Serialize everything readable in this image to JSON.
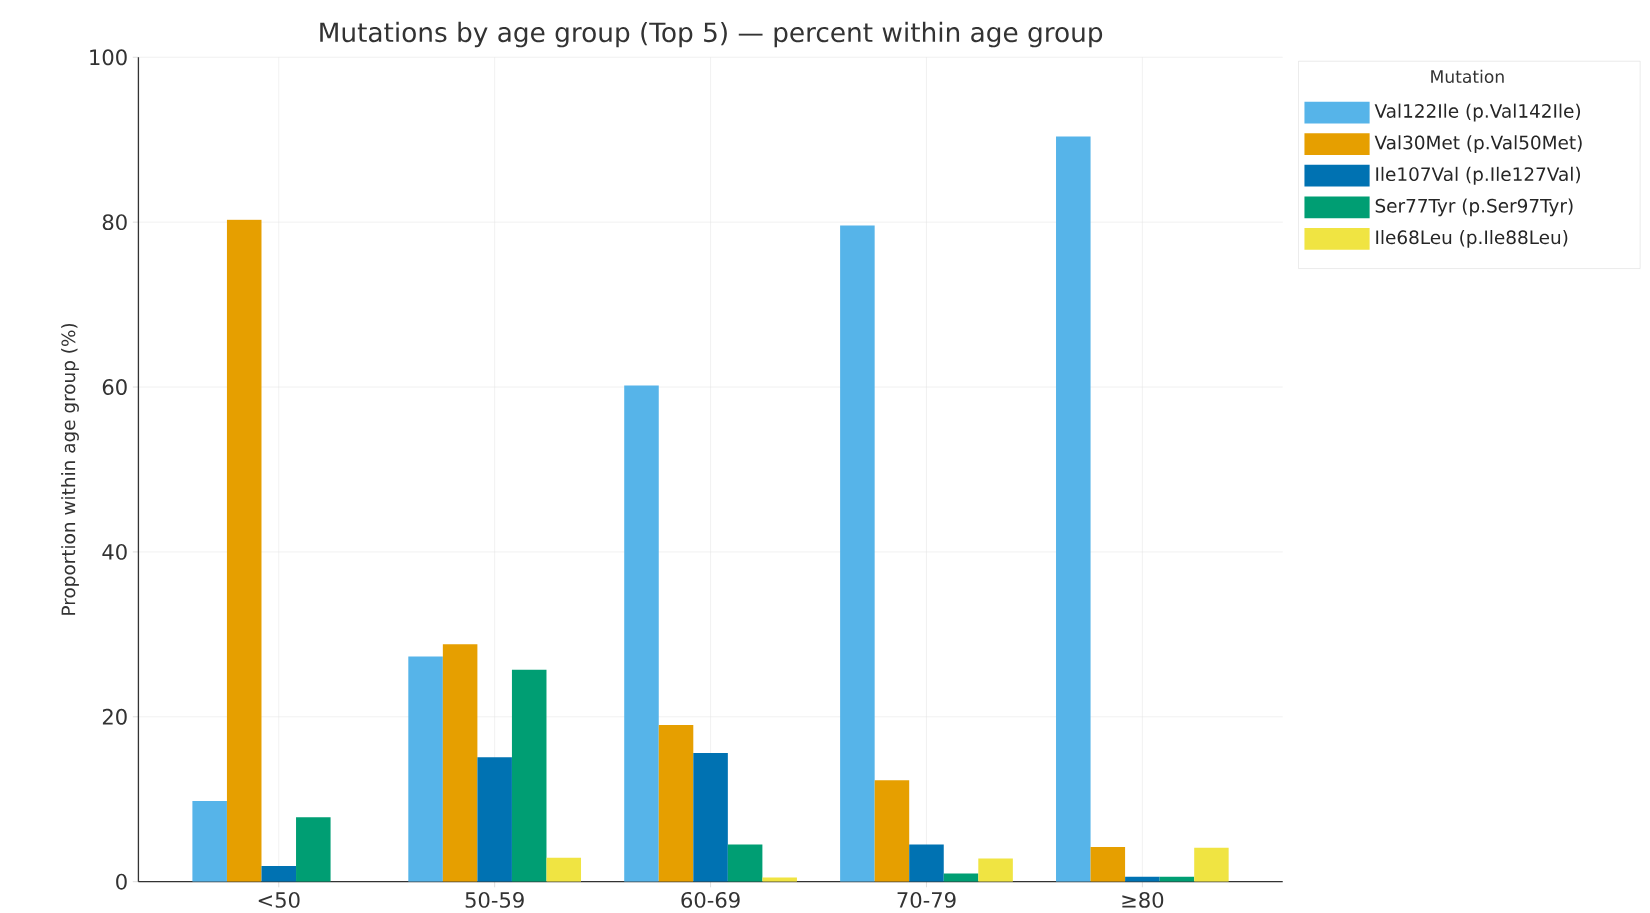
{
  "chart_data": {
    "type": "bar",
    "title": "Mutations by age group (Top 5) — percent within age group",
    "ylabel": "Proportion within age group (%)",
    "legend_title": "Mutation",
    "categories": [
      "<50",
      "50-59",
      "60-69",
      "70-79",
      "≥80"
    ],
    "series": [
      {
        "name": "Val122Ile (p.Val142Ile)",
        "color": "#56b4e9",
        "values": [
          9.8,
          27.3,
          60.2,
          79.6,
          90.4
        ]
      },
      {
        "name": "Val30Met (p.Val50Met)",
        "color": "#e69f00",
        "values": [
          80.3,
          28.8,
          19.0,
          12.3,
          4.2
        ]
      },
      {
        "name": "Ile107Val (p.Ile127Val)",
        "color": "#0072b2",
        "values": [
          1.9,
          15.1,
          15.6,
          4.5,
          0.6
        ]
      },
      {
        "name": "Ser77Tyr (p.Ser97Tyr)",
        "color": "#009e73",
        "values": [
          7.8,
          25.7,
          4.5,
          1.0,
          0.6
        ]
      },
      {
        "name": "Ile68Leu (p.Ile88Leu)",
        "color": "#f0e442",
        "values": [
          0.0,
          2.9,
          0.5,
          2.8,
          4.1
        ]
      }
    ],
    "ylim": [
      0,
      100
    ],
    "yticks": [
      0,
      20,
      40,
      60,
      80,
      100
    ],
    "grid": true,
    "legend": "top right"
  }
}
